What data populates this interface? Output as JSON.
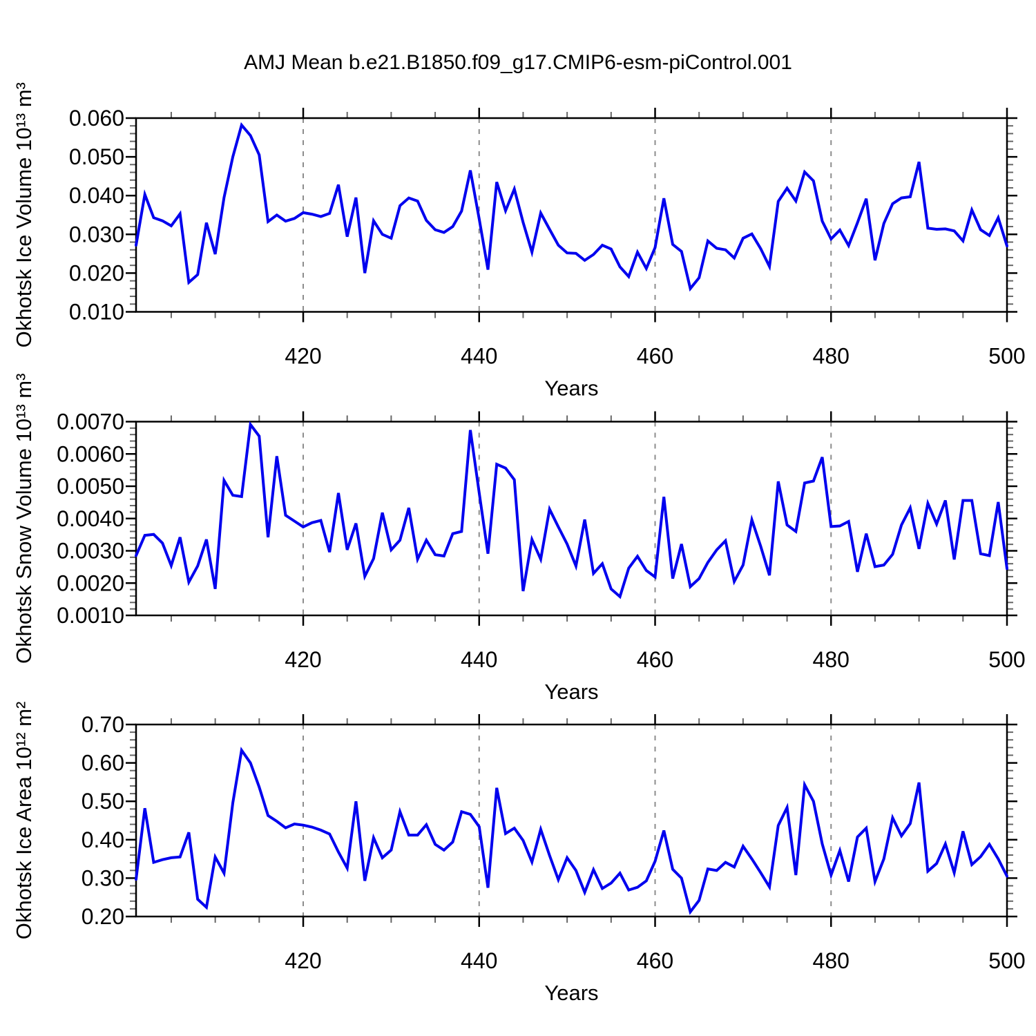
{
  "page_title": "AMJ Mean b.e21.B1850.f09_g17.CMIP6-esm-piControl.001",
  "line_color": "#0000EE",
  "axis_color": "#000000",
  "grid_color": "#8c8c8c",
  "minor_tick_color": "#666666",
  "chart_data": [
    {
      "type": "line",
      "name": "okhotsk-ice-volume",
      "ylabel": "Okhotsk Ice Volume 10¹³ m³",
      "xlabel": "Years",
      "x_start": 401,
      "x_end": 500,
      "ylim": [
        0.01,
        0.06
      ],
      "ytick_step": 0.01,
      "ytick_minor_step": 0.002,
      "ytick_labels": [
        "0.010",
        "0.020",
        "0.030",
        "0.040",
        "0.050",
        "0.060"
      ],
      "xticks": [
        420,
        440,
        460,
        480,
        500
      ],
      "xtick_labels": [
        "420",
        "440",
        "460",
        "480",
        "500"
      ],
      "xminor_step": 5,
      "grid_x": [
        420,
        440,
        460,
        480
      ],
      "legend": "none",
      "grid": "vertical-dashed",
      "values": [
        0.0272,
        0.0403,
        0.0343,
        0.0335,
        0.0322,
        0.0353,
        0.0176,
        0.0196,
        0.033,
        0.0249,
        0.0395,
        0.05,
        0.0582,
        0.0555,
        0.0505,
        0.0333,
        0.035,
        0.0334,
        0.0341,
        0.0356,
        0.0352,
        0.0346,
        0.0354,
        0.0428,
        0.0294,
        0.0395,
        0.02,
        0.0335,
        0.03,
        0.029,
        0.0374,
        0.0394,
        0.0386,
        0.0336,
        0.0312,
        0.0305,
        0.032,
        0.036,
        0.0465,
        0.034,
        0.0209,
        0.0435,
        0.0361,
        0.0417,
        0.0331,
        0.0254,
        0.0355,
        0.0313,
        0.0272,
        0.0252,
        0.0251,
        0.0233,
        0.0248,
        0.0272,
        0.0262,
        0.0216,
        0.0191,
        0.0254,
        0.0212,
        0.0266,
        0.0393,
        0.0274,
        0.0256,
        0.016,
        0.0188,
        0.0283,
        0.0264,
        0.026,
        0.0239,
        0.029,
        0.0301,
        0.0263,
        0.0217,
        0.0385,
        0.0419,
        0.0386,
        0.0461,
        0.0438,
        0.0334,
        0.0288,
        0.0311,
        0.0271,
        0.033,
        0.0392,
        0.0233,
        0.0328,
        0.0379,
        0.0394,
        0.0397,
        0.0487,
        0.0316,
        0.0313,
        0.0314,
        0.0309,
        0.0283,
        0.0363,
        0.0312,
        0.0297,
        0.0343,
        0.027
      ]
    },
    {
      "type": "line",
      "name": "okhotsk-snow-volume",
      "ylabel": "Okhotsk Snow Volume 10¹³ m³",
      "xlabel": "Years",
      "x_start": 401,
      "x_end": 500,
      "ylim": [
        0.001,
        0.007
      ],
      "ytick_step": 0.001,
      "ytick_minor_step": 0.0002,
      "ytick_labels": [
        "0.0010",
        "0.0020",
        "0.0030",
        "0.0040",
        "0.0050",
        "0.0060",
        "0.0070"
      ],
      "xticks": [
        420,
        440,
        460,
        480,
        500
      ],
      "xtick_labels": [
        "420",
        "440",
        "460",
        "480",
        "500"
      ],
      "xminor_step": 5,
      "grid_x": [
        420,
        440,
        460,
        480
      ],
      "legend": "none",
      "grid": "vertical-dashed",
      "values": [
        0.00285,
        0.00348,
        0.00351,
        0.00324,
        0.00254,
        0.00342,
        0.00203,
        0.00253,
        0.00335,
        0.00182,
        0.00518,
        0.00472,
        0.00468,
        0.00691,
        0.00655,
        0.00342,
        0.00593,
        0.0041,
        0.00392,
        0.00374,
        0.00387,
        0.00394,
        0.00296,
        0.00479,
        0.00303,
        0.00385,
        0.00221,
        0.00276,
        0.00418,
        0.00303,
        0.00333,
        0.00433,
        0.00274,
        0.00333,
        0.00288,
        0.00284,
        0.00353,
        0.0036,
        0.00674,
        0.0048,
        0.00291,
        0.00568,
        0.00556,
        0.0052,
        0.00175,
        0.00335,
        0.00274,
        0.00429,
        0.00374,
        0.00321,
        0.00253,
        0.00397,
        0.0023,
        0.0026,
        0.00182,
        0.00158,
        0.00246,
        0.00283,
        0.00239,
        0.00219,
        0.00467,
        0.00214,
        0.00321,
        0.00189,
        0.00214,
        0.00264,
        0.00303,
        0.00331,
        0.00205,
        0.00256,
        0.00396,
        0.00314,
        0.00224,
        0.00515,
        0.0038,
        0.0036,
        0.0051,
        0.00516,
        0.0059,
        0.00375,
        0.00377,
        0.00391,
        0.00235,
        0.00353,
        0.00251,
        0.00256,
        0.00289,
        0.0038,
        0.00433,
        0.00306,
        0.00447,
        0.00383,
        0.00456,
        0.00273,
        0.00456,
        0.00456,
        0.00291,
        0.00285,
        0.00451,
        0.00245
      ]
    },
    {
      "type": "line",
      "name": "okhotsk-ice-area",
      "ylabel": "Okhotsk Ice Area 10¹² m²",
      "xlabel": "Years",
      "x_start": 401,
      "x_end": 500,
      "ylim": [
        0.2,
        0.7
      ],
      "ytick_step": 0.1,
      "ytick_minor_step": 0.02,
      "ytick_labels": [
        "0.20",
        "0.30",
        "0.40",
        "0.50",
        "0.60",
        "0.70"
      ],
      "xticks": [
        420,
        440,
        460,
        480,
        500
      ],
      "xtick_labels": [
        "420",
        "440",
        "460",
        "480",
        "500"
      ],
      "xminor_step": 5,
      "grid_x": [
        420,
        440,
        460,
        480
      ],
      "legend": "none",
      "grid": "vertical-dashed",
      "values": [
        0.297,
        0.482,
        0.341,
        0.348,
        0.353,
        0.355,
        0.419,
        0.245,
        0.224,
        0.355,
        0.313,
        0.496,
        0.633,
        0.6,
        0.537,
        0.463,
        0.448,
        0.431,
        0.441,
        0.438,
        0.433,
        0.425,
        0.415,
        0.368,
        0.326,
        0.5,
        0.293,
        0.405,
        0.353,
        0.373,
        0.473,
        0.412,
        0.412,
        0.439,
        0.388,
        0.373,
        0.394,
        0.473,
        0.466,
        0.434,
        0.275,
        0.535,
        0.416,
        0.43,
        0.398,
        0.342,
        0.427,
        0.359,
        0.296,
        0.353,
        0.32,
        0.263,
        0.322,
        0.273,
        0.287,
        0.313,
        0.269,
        0.276,
        0.293,
        0.344,
        0.424,
        0.323,
        0.3,
        0.212,
        0.242,
        0.324,
        0.32,
        0.341,
        0.329,
        0.383,
        0.35,
        0.314,
        0.277,
        0.437,
        0.484,
        0.308,
        0.543,
        0.5,
        0.389,
        0.308,
        0.372,
        0.291,
        0.407,
        0.43,
        0.291,
        0.35,
        0.457,
        0.41,
        0.442,
        0.549,
        0.318,
        0.338,
        0.389,
        0.314,
        0.422,
        0.335,
        0.356,
        0.388,
        0.35,
        0.305
      ]
    }
  ]
}
